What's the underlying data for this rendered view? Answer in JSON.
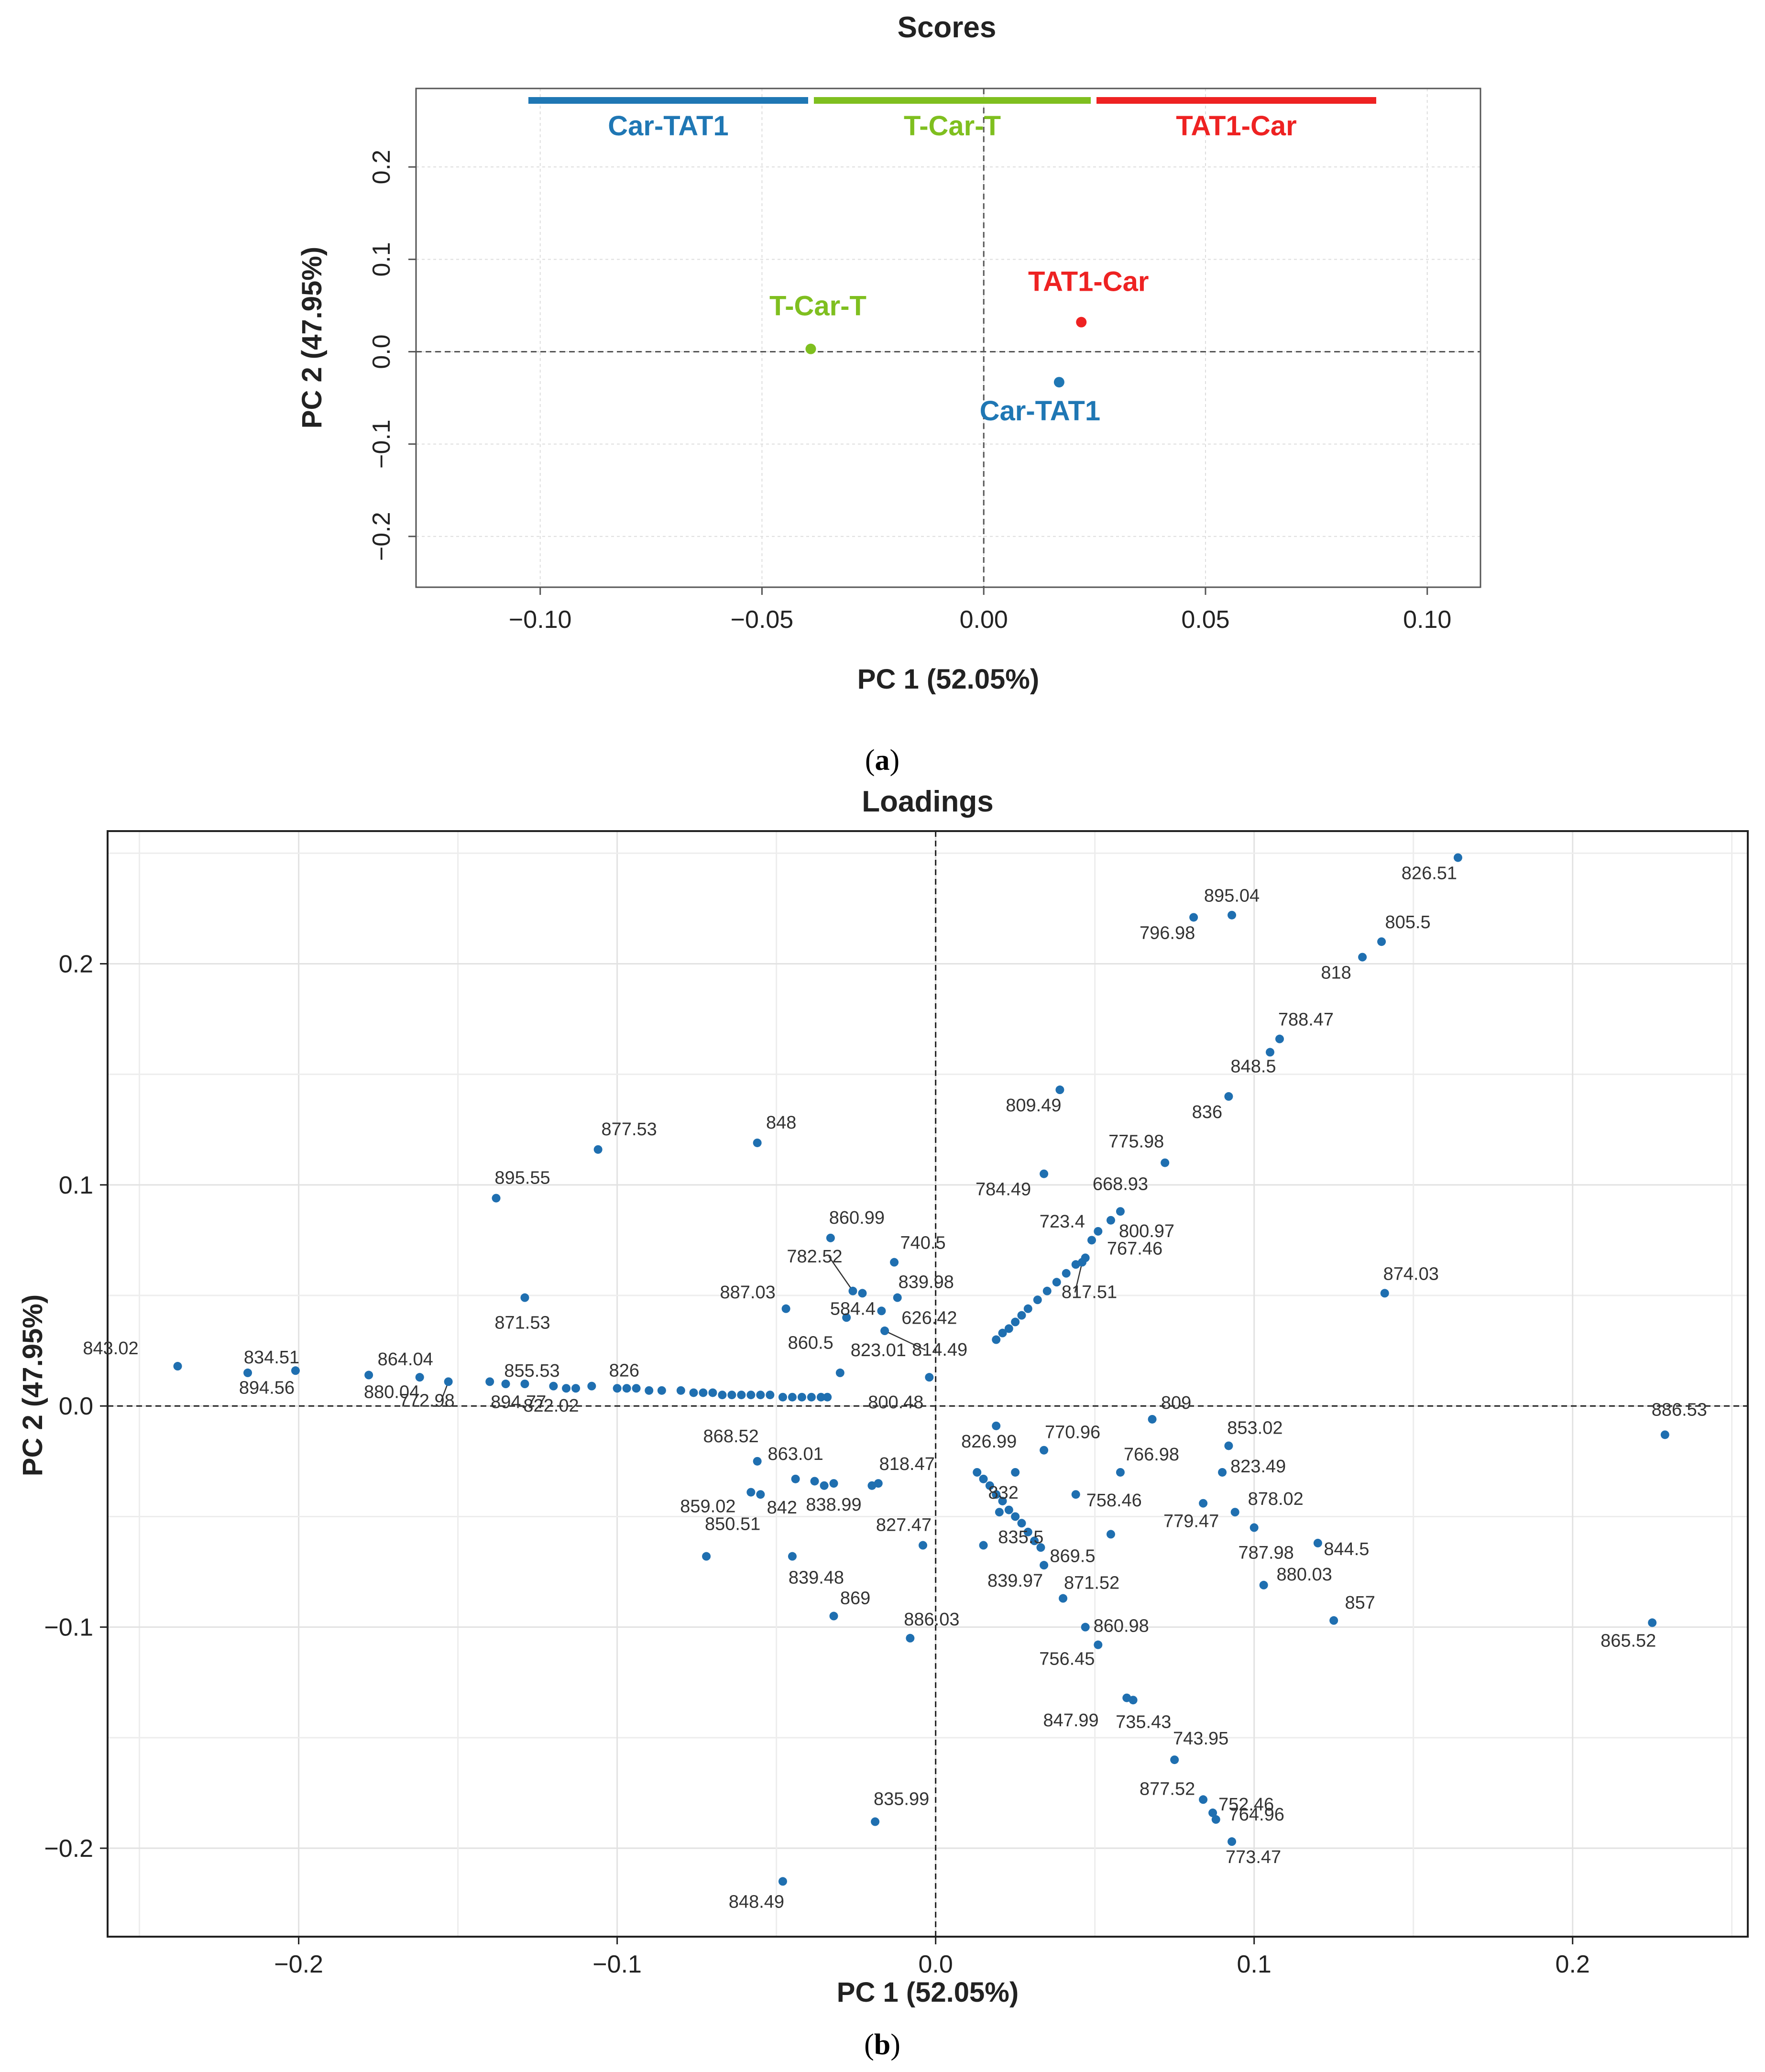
{
  "chart_data": [
    {
      "type": "scatter",
      "panel_caption": {
        "open": "(",
        "letter": "a",
        "close": ")"
      },
      "title": "Scores",
      "xlabel": "PC 1 (52.05%)",
      "ylabel": "PC 2 (47.95%)",
      "xlim": [
        -0.128,
        0.112
      ],
      "ylim": [
        -0.255,
        0.285
      ],
      "xticks": [
        -0.1,
        -0.05,
        0.0,
        0.05,
        0.1
      ],
      "xtick_labels": [
        "−0.10",
        "−0.05",
        "0.00",
        "0.05",
        "0.10"
      ],
      "yticks": [
        -0.2,
        -0.1,
        0.0,
        0.1,
        0.2
      ],
      "ytick_labels": [
        "−0.2",
        "−0.1",
        "0.0",
        "0.1",
        "0.2"
      ],
      "legend_placement": "top",
      "legend": [
        {
          "name": "Car-TAT1",
          "color": "#1f77b4"
        },
        {
          "name": "T-Car-T",
          "color": "#7fbf1f"
        },
        {
          "name": "TAT1-Car",
          "color": "#ee2222"
        }
      ],
      "points": [
        {
          "label": "T-Car-T",
          "x": -0.039,
          "y": 0.003,
          "color": "#7fbf1f"
        },
        {
          "label": "TAT1-Car",
          "x": 0.022,
          "y": 0.032,
          "color": "#ee2222"
        },
        {
          "label": "Car-TAT1",
          "x": 0.017,
          "y": -0.033,
          "color": "#1f77b4"
        }
      ]
    },
    {
      "type": "scatter",
      "panel_caption": {
        "open": "(",
        "letter": "b",
        "close": ")"
      },
      "title": "Loadings",
      "xlabel": "PC 1 (52.05%)",
      "ylabel": "PC 2 (47.95%)",
      "xlim": [
        -0.26,
        0.255
      ],
      "ylim": [
        -0.24,
        0.26
      ],
      "xticks": [
        -0.2,
        -0.1,
        0.0,
        0.1,
        0.2
      ],
      "xtick_labels": [
        "−0.2",
        "−0.1",
        "0.0",
        "0.1",
        "0.2"
      ],
      "yticks": [
        -0.2,
        -0.1,
        0.0,
        0.1,
        0.2
      ],
      "ytick_labels": [
        "−0.2",
        "−0.1",
        "0.0",
        "0.1",
        "0.2"
      ],
      "point_color": "#1f6fb0",
      "labeled_points": [
        {
          "label": "826.51",
          "x": 0.164,
          "y": 0.248
        },
        {
          "label": "895.04",
          "x": 0.093,
          "y": 0.222
        },
        {
          "label": "796.98",
          "x": 0.081,
          "y": 0.221
        },
        {
          "label": "805.5",
          "x": 0.14,
          "y": 0.21
        },
        {
          "label": "818",
          "x": 0.134,
          "y": 0.203
        },
        {
          "label": "788.47",
          "x": 0.108,
          "y": 0.166
        },
        {
          "label": "848.5",
          "x": 0.105,
          "y": 0.16
        },
        {
          "label": "836",
          "x": 0.092,
          "y": 0.14
        },
        {
          "label": "809.49",
          "x": 0.039,
          "y": 0.143
        },
        {
          "label": "775.98",
          "x": 0.072,
          "y": 0.11
        },
        {
          "label": "784.49",
          "x": 0.034,
          "y": 0.105
        },
        {
          "label": "668.93",
          "x": 0.058,
          "y": 0.088
        },
        {
          "label": "800.97",
          "x": 0.055,
          "y": 0.084
        },
        {
          "label": "723.4",
          "x": 0.051,
          "y": 0.079
        },
        {
          "label": "767.46",
          "x": 0.049,
          "y": 0.075
        },
        {
          "label": "817.51",
          "x": 0.046,
          "y": 0.065
        },
        {
          "label": "874.03",
          "x": 0.141,
          "y": 0.051
        },
        {
          "label": "877.53",
          "x": -0.106,
          "y": 0.116
        },
        {
          "label": "848",
          "x": -0.056,
          "y": 0.119
        },
        {
          "label": "895.55",
          "x": -0.138,
          "y": 0.094
        },
        {
          "label": "871.53",
          "x": -0.129,
          "y": 0.049
        },
        {
          "label": "860.99",
          "x": -0.033,
          "y": 0.076
        },
        {
          "label": "782.52",
          "x": -0.026,
          "y": 0.052
        },
        {
          "label": "740.5",
          "x": -0.013,
          "y": 0.065
        },
        {
          "label": "839.98",
          "x": -0.012,
          "y": 0.049
        },
        {
          "label": "584.4",
          "x": -0.023,
          "y": 0.051
        },
        {
          "label": "887.03",
          "x": -0.047,
          "y": 0.044
        },
        {
          "label": "626.42",
          "x": -0.017,
          "y": 0.043
        },
        {
          "label": "860.5",
          "x": -0.028,
          "y": 0.04
        },
        {
          "label": "814.49",
          "x": -0.016,
          "y": 0.034
        },
        {
          "label": "823.01",
          "x": -0.03,
          "y": 0.015
        },
        {
          "label": "800.48",
          "x": -0.002,
          "y": 0.013
        },
        {
          "label": "843.02",
          "x": -0.238,
          "y": 0.018
        },
        {
          "label": "834.51",
          "x": -0.216,
          "y": 0.015
        },
        {
          "label": "894.56",
          "x": -0.201,
          "y": 0.016
        },
        {
          "label": "880.04",
          "x": -0.178,
          "y": 0.014
        },
        {
          "label": "864.04",
          "x": -0.162,
          "y": 0.013
        },
        {
          "label": "772.98",
          "x": -0.153,
          "y": 0.011
        },
        {
          "label": "894.77",
          "x": -0.14,
          "y": 0.011
        },
        {
          "label": "855.53",
          "x": -0.135,
          "y": 0.01
        },
        {
          "label": "822.02",
          "x": -0.129,
          "y": 0.01
        },
        {
          "label": "826",
          "x": -0.108,
          "y": 0.009
        },
        {
          "label": "809",
          "x": 0.068,
          "y": -0.006
        },
        {
          "label": "886.53",
          "x": 0.229,
          "y": -0.013
        },
        {
          "label": "826.99",
          "x": 0.019,
          "y": -0.009
        },
        {
          "label": "853.02",
          "x": 0.092,
          "y": -0.018
        },
        {
          "label": "770.96",
          "x": 0.034,
          "y": -0.02
        },
        {
          "label": "832",
          "x": 0.025,
          "y": -0.03
        },
        {
          "label": "766.98",
          "x": 0.058,
          "y": -0.03
        },
        {
          "label": "823.49",
          "x": 0.09,
          "y": -0.03
        },
        {
          "label": "868.52",
          "x": -0.056,
          "y": -0.025
        },
        {
          "label": "863.01",
          "x": -0.044,
          "y": -0.033
        },
        {
          "label": "818.47",
          "x": -0.018,
          "y": -0.035
        },
        {
          "label": "842",
          "x": -0.055,
          "y": -0.04
        },
        {
          "label": "838.99",
          "x": -0.032,
          "y": -0.035
        },
        {
          "label": "859.02",
          "x": -0.058,
          "y": -0.039
        },
        {
          "label": "758.46",
          "x": 0.044,
          "y": -0.04
        },
        {
          "label": "835.5",
          "x": 0.02,
          "y": -0.048
        },
        {
          "label": "779.47",
          "x": 0.084,
          "y": -0.044
        },
        {
          "label": "878.02",
          "x": 0.094,
          "y": -0.048
        },
        {
          "label": "827.47",
          "x": -0.004,
          "y": -0.063
        },
        {
          "label": "869.5",
          "x": 0.055,
          "y": -0.058
        },
        {
          "label": "844.5",
          "x": 0.12,
          "y": -0.062
        },
        {
          "label": "787.98",
          "x": 0.1,
          "y": -0.055
        },
        {
          "label": "850.51",
          "x": -0.072,
          "y": -0.068
        },
        {
          "label": "839.48",
          "x": -0.045,
          "y": -0.068
        },
        {
          "label": "839.97",
          "x": 0.034,
          "y": -0.072
        },
        {
          "label": "871.52",
          "x": 0.04,
          "y": -0.087
        },
        {
          "label": "880.03",
          "x": 0.103,
          "y": -0.081
        },
        {
          "label": "869",
          "x": -0.032,
          "y": -0.095
        },
        {
          "label": "886.03",
          "x": -0.008,
          "y": -0.105
        },
        {
          "label": "857",
          "x": 0.125,
          "y": -0.097
        },
        {
          "label": "865.52",
          "x": 0.225,
          "y": -0.098
        },
        {
          "label": "860.98",
          "x": 0.047,
          "y": -0.1
        },
        {
          "label": "756.45",
          "x": 0.051,
          "y": -0.108
        },
        {
          "label": "735.43",
          "x": 0.06,
          "y": -0.132
        },
        {
          "label": "847.99",
          "x": 0.062,
          "y": -0.133
        },
        {
          "label": "743.95",
          "x": 0.075,
          "y": -0.16
        },
        {
          "label": "877.52",
          "x": 0.084,
          "y": -0.178
        },
        {
          "label": "752.46",
          "x": 0.087,
          "y": -0.184
        },
        {
          "label": "764.96",
          "x": 0.088,
          "y": -0.187
        },
        {
          "label": "773.47",
          "x": 0.093,
          "y": -0.197
        },
        {
          "label": "835.99",
          "x": -0.019,
          "y": -0.188
        },
        {
          "label": "848.49",
          "x": -0.048,
          "y": -0.215
        }
      ],
      "unlabeled_points": [
        [
          -0.12,
          0.009
        ],
        [
          -0.116,
          0.008
        ],
        [
          -0.113,
          0.008
        ],
        [
          -0.1,
          0.008
        ],
        [
          -0.097,
          0.008
        ],
        [
          -0.094,
          0.008
        ],
        [
          -0.09,
          0.007
        ],
        [
          -0.086,
          0.007
        ],
        [
          -0.08,
          0.007
        ],
        [
          -0.076,
          0.006
        ],
        [
          -0.073,
          0.006
        ],
        [
          -0.07,
          0.006
        ],
        [
          -0.067,
          0.005
        ],
        [
          -0.064,
          0.005
        ],
        [
          -0.061,
          0.005
        ],
        [
          -0.058,
          0.005
        ],
        [
          -0.055,
          0.005
        ],
        [
          -0.052,
          0.005
        ],
        [
          -0.048,
          0.004
        ],
        [
          -0.045,
          0.004
        ],
        [
          -0.042,
          0.004
        ],
        [
          -0.039,
          0.004
        ],
        [
          -0.036,
          0.004
        ],
        [
          -0.034,
          0.004
        ],
        [
          0.019,
          0.03
        ],
        [
          0.021,
          0.033
        ],
        [
          0.023,
          0.035
        ],
        [
          0.025,
          0.038
        ],
        [
          0.027,
          0.041
        ],
        [
          0.029,
          0.044
        ],
        [
          0.032,
          0.048
        ],
        [
          0.035,
          0.052
        ],
        [
          0.038,
          0.056
        ],
        [
          0.041,
          0.06
        ],
        [
          0.044,
          0.064
        ],
        [
          0.047,
          0.067
        ],
        [
          0.013,
          -0.03
        ],
        [
          0.015,
          -0.033
        ],
        [
          0.017,
          -0.036
        ],
        [
          0.019,
          -0.04
        ],
        [
          0.021,
          -0.043
        ],
        [
          0.023,
          -0.047
        ],
        [
          0.025,
          -0.05
        ],
        [
          0.027,
          -0.053
        ],
        [
          0.029,
          -0.057
        ],
        [
          0.031,
          -0.061
        ],
        [
          0.033,
          -0.064
        ],
        [
          -0.038,
          -0.034
        ],
        [
          -0.035,
          -0.036
        ],
        [
          -0.02,
          -0.036
        ],
        [
          0.015,
          -0.063
        ]
      ]
    }
  ]
}
